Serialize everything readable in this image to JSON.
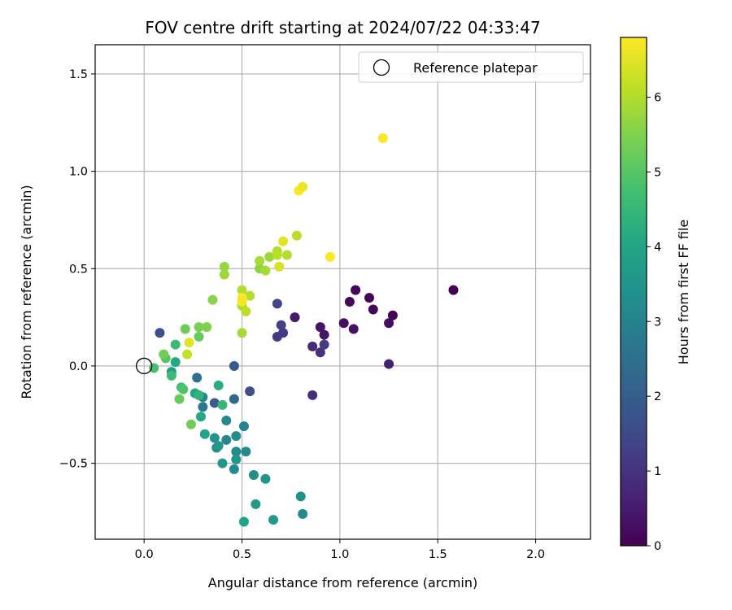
{
  "chart_data": {
    "type": "scatter",
    "title": "FOV centre drift starting at 2024/07/22 04:33:47",
    "xlabel": "Angular distance from reference (arcmin)",
    "ylabel": "Rotation from reference (arcmin)",
    "xlim": [
      -0.25,
      2.28
    ],
    "ylim": [
      -0.89,
      1.65
    ],
    "xticks": [
      0.0,
      0.5,
      1.0,
      1.5,
      2.0
    ],
    "xtick_labels": [
      "0.0",
      "0.5",
      "1.0",
      "1.5",
      "2.0"
    ],
    "yticks": [
      -0.5,
      0.0,
      0.5,
      1.0,
      1.5
    ],
    "ytick_labels": [
      "−0.5",
      "0.0",
      "0.5",
      "1.0",
      "1.5"
    ],
    "grid": true,
    "legend": {
      "position": "top-right",
      "entries": [
        {
          "label": "Reference platepar",
          "marker": "open-circle"
        }
      ]
    },
    "reference_point": {
      "x": 0.0,
      "y": 0.0
    },
    "colorbar": {
      "label": "Hours from first FF file",
      "colormap": "viridis",
      "range": [
        0,
        6.8
      ],
      "ticks": [
        0,
        1,
        2,
        3,
        4,
        5,
        6
      ],
      "tick_labels": [
        "0",
        "1",
        "2",
        "3",
        "4",
        "5",
        "6"
      ]
    },
    "points": [
      {
        "x": 1.58,
        "y": 0.39,
        "c": 0.0
      },
      {
        "x": 1.08,
        "y": 0.39,
        "c": 0.1
      },
      {
        "x": 1.15,
        "y": 0.35,
        "c": 0.1
      },
      {
        "x": 1.05,
        "y": 0.33,
        "c": 0.15
      },
      {
        "x": 1.27,
        "y": 0.26,
        "c": 0.1
      },
      {
        "x": 1.17,
        "y": 0.29,
        "c": 0.15
      },
      {
        "x": 1.25,
        "y": 0.22,
        "c": 0.2
      },
      {
        "x": 1.02,
        "y": 0.22,
        "c": 0.25
      },
      {
        "x": 1.07,
        "y": 0.19,
        "c": 0.3
      },
      {
        "x": 0.9,
        "y": 0.2,
        "c": 0.35
      },
      {
        "x": 0.92,
        "y": 0.16,
        "c": 0.4
      },
      {
        "x": 0.77,
        "y": 0.25,
        "c": 0.5
      },
      {
        "x": 1.25,
        "y": 0.01,
        "c": 0.6
      },
      {
        "x": 0.86,
        "y": 0.1,
        "c": 0.8
      },
      {
        "x": 0.86,
        "y": -0.15,
        "c": 0.9
      },
      {
        "x": 0.9,
        "y": 0.07,
        "c": 1.0
      },
      {
        "x": 0.92,
        "y": 0.11,
        "c": 1.2
      },
      {
        "x": 0.7,
        "y": 0.21,
        "c": 1.3
      },
      {
        "x": 0.71,
        "y": 0.17,
        "c": 1.2
      },
      {
        "x": 0.68,
        "y": 0.15,
        "c": 1.2
      },
      {
        "x": 0.68,
        "y": 0.32,
        "c": 1.4
      },
      {
        "x": 0.08,
        "y": 0.17,
        "c": 1.6
      },
      {
        "x": 0.46,
        "y": 0.0,
        "c": 1.9
      },
      {
        "x": 0.54,
        "y": -0.13,
        "c": 1.6
      },
      {
        "x": 0.46,
        "y": -0.17,
        "c": 2.3
      },
      {
        "x": 0.36,
        "y": -0.19,
        "c": 1.9
      },
      {
        "x": 0.27,
        "y": -0.06,
        "c": 2.5
      },
      {
        "x": 0.3,
        "y": -0.21,
        "c": 2.7
      },
      {
        "x": 0.3,
        "y": -0.16,
        "c": 3.1
      },
      {
        "x": 0.42,
        "y": -0.28,
        "c": 3.2
      },
      {
        "x": 0.51,
        "y": -0.31,
        "c": 3.0
      },
      {
        "x": 0.47,
        "y": -0.36,
        "c": 3.3
      },
      {
        "x": 0.36,
        "y": -0.37,
        "c": 3.5
      },
      {
        "x": 0.42,
        "y": -0.38,
        "c": 3.1
      },
      {
        "x": 0.37,
        "y": -0.42,
        "c": 3.3
      },
      {
        "x": 0.38,
        "y": -0.41,
        "c": 3.6
      },
      {
        "x": 0.47,
        "y": -0.44,
        "c": 3.3
      },
      {
        "x": 0.52,
        "y": -0.44,
        "c": 3.2
      },
      {
        "x": 0.46,
        "y": -0.53,
        "c": 3.2
      },
      {
        "x": 0.47,
        "y": -0.48,
        "c": 3.5
      },
      {
        "x": 0.4,
        "y": -0.5,
        "c": 3.6
      },
      {
        "x": 0.56,
        "y": -0.56,
        "c": 3.3
      },
      {
        "x": 0.62,
        "y": -0.58,
        "c": 3.5
      },
      {
        "x": 0.8,
        "y": -0.67,
        "c": 3.4
      },
      {
        "x": 0.81,
        "y": -0.76,
        "c": 3.2
      },
      {
        "x": 0.57,
        "y": -0.71,
        "c": 3.7
      },
      {
        "x": 0.51,
        "y": -0.8,
        "c": 3.9
      },
      {
        "x": 0.66,
        "y": -0.79,
        "c": 3.6
      },
      {
        "x": 0.31,
        "y": -0.35,
        "c": 3.9
      },
      {
        "x": 0.29,
        "y": -0.26,
        "c": 4.1
      },
      {
        "x": 0.26,
        "y": -0.14,
        "c": 4.0
      },
      {
        "x": 0.38,
        "y": -0.1,
        "c": 4.2
      },
      {
        "x": 0.28,
        "y": -0.15,
        "c": 4.4
      },
      {
        "x": 0.4,
        "y": -0.2,
        "c": 4.5
      },
      {
        "x": 0.14,
        "y": -0.03,
        "c": 3.8
      },
      {
        "x": 0.16,
        "y": 0.02,
        "c": 4.1
      },
      {
        "x": 0.14,
        "y": -0.05,
        "c": 4.6
      },
      {
        "x": 0.19,
        "y": -0.11,
        "c": 4.7
      },
      {
        "x": 0.2,
        "y": -0.12,
        "c": 4.9
      },
      {
        "x": 0.18,
        "y": -0.17,
        "c": 5.2
      },
      {
        "x": 0.24,
        "y": -0.3,
        "c": 5.3
      },
      {
        "x": 0.16,
        "y": 0.11,
        "c": 4.6
      },
      {
        "x": 0.05,
        "y": -0.01,
        "c": 4.8
      },
      {
        "x": 0.11,
        "y": 0.04,
        "c": 5.0
      },
      {
        "x": 0.1,
        "y": 0.06,
        "c": 5.3
      },
      {
        "x": 0.28,
        "y": 0.15,
        "c": 5.2
      },
      {
        "x": 0.21,
        "y": 0.19,
        "c": 5.3
      },
      {
        "x": 0.28,
        "y": 0.2,
        "c": 5.4
      },
      {
        "x": 0.32,
        "y": 0.2,
        "c": 5.5
      },
      {
        "x": 0.22,
        "y": 0.06,
        "c": 6.2
      },
      {
        "x": 0.23,
        "y": 0.12,
        "c": 6.5
      },
      {
        "x": 0.35,
        "y": 0.34,
        "c": 5.6
      },
      {
        "x": 0.41,
        "y": 0.51,
        "c": 5.7
      },
      {
        "x": 0.41,
        "y": 0.47,
        "c": 5.8
      },
      {
        "x": 0.5,
        "y": 0.17,
        "c": 5.9
      },
      {
        "x": 0.5,
        "y": 0.31,
        "c": 5.9
      },
      {
        "x": 0.52,
        "y": 0.28,
        "c": 6.1
      },
      {
        "x": 0.5,
        "y": 0.39,
        "c": 6.0
      },
      {
        "x": 0.54,
        "y": 0.36,
        "c": 6.0
      },
      {
        "x": 0.5,
        "y": 0.35,
        "c": 6.8
      },
      {
        "x": 0.5,
        "y": 0.33,
        "c": 6.7
      },
      {
        "x": 0.59,
        "y": 0.5,
        "c": 5.6
      },
      {
        "x": 0.59,
        "y": 0.54,
        "c": 5.9
      },
      {
        "x": 0.62,
        "y": 0.49,
        "c": 5.9
      },
      {
        "x": 0.64,
        "y": 0.56,
        "c": 5.8
      },
      {
        "x": 0.68,
        "y": 0.59,
        "c": 6.0
      },
      {
        "x": 0.68,
        "y": 0.57,
        "c": 6.1
      },
      {
        "x": 0.73,
        "y": 0.57,
        "c": 6.0
      },
      {
        "x": 0.69,
        "y": 0.51,
        "c": 6.4
      },
      {
        "x": 0.71,
        "y": 0.64,
        "c": 6.5
      },
      {
        "x": 0.78,
        "y": 0.67,
        "c": 6.1
      },
      {
        "x": 0.95,
        "y": 0.56,
        "c": 6.8
      },
      {
        "x": 0.79,
        "y": 0.9,
        "c": 6.8
      },
      {
        "x": 0.81,
        "y": 0.92,
        "c": 6.6
      },
      {
        "x": 1.22,
        "y": 1.17,
        "c": 6.8
      }
    ]
  }
}
